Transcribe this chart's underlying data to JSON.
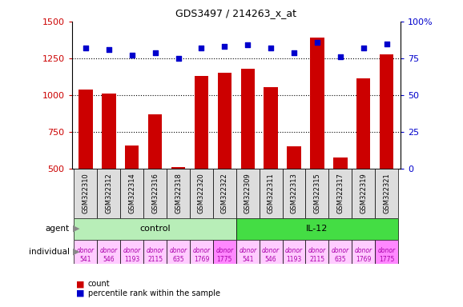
{
  "title": "GDS3497 / 214263_x_at",
  "samples": [
    "GSM322310",
    "GSM322312",
    "GSM322314",
    "GSM322316",
    "GSM322318",
    "GSM322320",
    "GSM322322",
    "GSM322309",
    "GSM322311",
    "GSM322313",
    "GSM322315",
    "GSM322317",
    "GSM322319",
    "GSM322321"
  ],
  "counts": [
    1040,
    1010,
    660,
    870,
    510,
    1130,
    1150,
    1180,
    1055,
    655,
    1390,
    575,
    1115,
    1275
  ],
  "percentile_ranks": [
    82,
    81,
    77,
    79,
    75,
    82,
    83,
    84,
    82,
    79,
    86,
    76,
    82,
    85
  ],
  "ylim_left": [
    500,
    1500
  ],
  "ylim_right": [
    0,
    100
  ],
  "yticks_left": [
    500,
    750,
    1000,
    1250,
    1500
  ],
  "yticks_right": [
    0,
    25,
    50,
    75,
    100
  ],
  "ytick_right_labels": [
    "0",
    "25",
    "50",
    "75",
    "100%"
  ],
  "agent_groups": [
    {
      "label": "control",
      "start": 0,
      "end": 7,
      "color": "#B8EEB8"
    },
    {
      "label": "IL-12",
      "start": 7,
      "end": 14,
      "color": "#44DD44"
    }
  ],
  "individuals": [
    "donor\n541",
    "donor\n546",
    "donor\n1193",
    "donor\n2115",
    "donor\n635",
    "donor\n1769",
    "donor\n1775",
    "donor\n541",
    "donor\n546",
    "donor\n1193",
    "donor\n2115",
    "donor\n635",
    "donor\n1769",
    "donor\n1775"
  ],
  "individual_colors": [
    "#FFCCFF",
    "#FFCCFF",
    "#FFCCFF",
    "#FFCCFF",
    "#FFCCFF",
    "#FFCCFF",
    "#FF88FF",
    "#FFCCFF",
    "#FFCCFF",
    "#FFCCFF",
    "#FFCCFF",
    "#FFCCFF",
    "#FFCCFF",
    "#FF88FF"
  ],
  "bar_color": "#CC0000",
  "dot_color": "#0000CC",
  "tick_label_color_left": "#CC0000",
  "tick_label_color_right": "#0000CC",
  "bg_color": "#FFFFFF",
  "sample_label_bg": "#DDDDDD",
  "dotted_line_values": [
    750,
    1000,
    1250
  ],
  "legend_items": [
    {
      "color": "#CC0000",
      "label": "count"
    },
    {
      "color": "#0000CC",
      "label": "percentile rank within the sample"
    }
  ]
}
